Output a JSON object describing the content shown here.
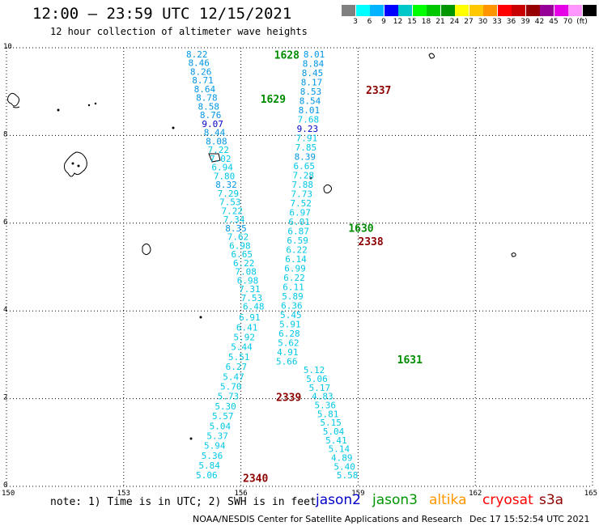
{
  "header": {
    "title": "12:00 — 23:59 UTC 12/15/2021",
    "subtitle": "12 hour collection of altimeter wave heights"
  },
  "legend": {
    "colors": [
      "#808080",
      "#00ffff",
      "#00b4ff",
      "#0000ff",
      "#00c8c8",
      "#00ff00",
      "#00c800",
      "#009600",
      "#ffff00",
      "#ffc800",
      "#ff9600",
      "#ff0000",
      "#c80000",
      "#960000",
      "#960096",
      "#e600e6",
      "#ff96ff",
      "#000000"
    ],
    "labels": [
      "3",
      "6",
      "9",
      "12",
      "15",
      "18",
      "21",
      "24",
      "27",
      "30",
      "33",
      "36",
      "39",
      "42",
      "45",
      "70",
      "(ft)"
    ]
  },
  "axes": {
    "x_ticks": [
      "150",
      "153",
      "156",
      "159",
      "162",
      "165"
    ],
    "y_ticks": [
      "10",
      "8",
      "6",
      "4",
      "2",
      "0"
    ]
  },
  "palette": {
    "cyan": "#00c8e6",
    "blue_mid": "#0096e6",
    "blue_dark": "#0000c8",
    "green": "#008c00",
    "darkred": "#8c0000",
    "coast": "#000000",
    "grid": "#000000"
  },
  "passes": [
    {
      "label": "1628",
      "color": "#008c00",
      "lon": 156.85,
      "lat": 9.75
    },
    {
      "label": "1629",
      "color": "#008c00",
      "lon": 156.5,
      "lat": 8.75
    },
    {
      "label": "2337",
      "color": "#8c0000",
      "lon": 159.2,
      "lat": 8.95
    },
    {
      "label": "1630",
      "color": "#008c00",
      "lon": 158.75,
      "lat": 5.8
    },
    {
      "label": "2338",
      "color": "#8c0000",
      "lon": 159.0,
      "lat": 5.5
    },
    {
      "label": "1631",
      "color": "#008c00",
      "lon": 160.0,
      "lat": 2.8
    },
    {
      "label": "2339",
      "color": "#8c0000",
      "lon": 156.9,
      "lat": 1.95
    },
    {
      "label": "2340",
      "color": "#8c0000",
      "lon": 156.05,
      "lat": 0.1
    }
  ],
  "tracks": [
    {
      "name": "pass-1628-1630",
      "values": [
        "8.22",
        "8.46",
        "8.26",
        "8.71",
        "8.64",
        "8.78",
        "8.58",
        "8.76",
        "9.07",
        "8.44",
        "8.08",
        "7.22",
        "7.02",
        "6.94",
        "7.80",
        "8.32",
        "7.29",
        "7.53",
        "7.22",
        "7.34",
        "8.35",
        "7.62",
        "6.98",
        "6.65",
        "6.22",
        "7.08",
        "6.98",
        "7.31",
        "7.53",
        "6.48"
      ],
      "start": [
        154.6,
        9.78
      ],
      "end": [
        156.05,
        4.03
      ]
    },
    {
      "name": "pass-2337-2338",
      "values": [
        "8.01",
        "8.84",
        "8.45",
        "8.17",
        "8.53",
        "8.54",
        "8.01",
        "7.68",
        "9.23",
        "7.91",
        "7.85",
        "8.39",
        "6.65",
        "7.28",
        "7.88",
        "7.73",
        "7.52",
        "6.97",
        "6.01",
        "6.87",
        "6.59",
        "6.22",
        "6.14",
        "6.99",
        "6.22",
        "6.11",
        "5.89",
        "6.36",
        "5.45",
        "5.91",
        "6.28",
        "5.62",
        "4.91",
        "5.66"
      ],
      "start": [
        157.6,
        9.78
      ],
      "end": [
        156.9,
        2.78
      ]
    },
    {
      "name": "pass-1631-lower",
      "values": [
        "5.12",
        "5.06",
        "5.17",
        "4.83",
        "5.36",
        "5.81",
        "5.15",
        "5.04",
        "5.41",
        "5.14",
        "4.89",
        "5.40",
        "5.58"
      ],
      "start": [
        157.6,
        2.58
      ],
      "end": [
        158.45,
        0.18
      ]
    },
    {
      "name": "pass-2339-lower",
      "values": [
        "6.91",
        "6.41",
        "5.92",
        "5.44",
        "5.51",
        "6.27",
        "5.47",
        "5.70",
        "5.73",
        "5.30",
        "5.57",
        "5.04",
        "5.37",
        "5.94",
        "5.36",
        "5.84",
        "5.06"
      ],
      "start": [
        155.95,
        3.78
      ],
      "end": [
        154.85,
        0.18
      ]
    }
  ],
  "footer": {
    "note": "note: 1) Time is in UTC; 2) SWH is in feet",
    "satellites": [
      {
        "name": "jason2",
        "color": "#0000c8"
      },
      {
        "name": "jason3",
        "color": "#009600"
      },
      {
        "name": "altika",
        "color": "#ff9600"
      },
      {
        "name": "cryosat",
        "color": "#ff0000"
      },
      {
        "name": "s3a",
        "color": "#8c0000"
      }
    ],
    "credit": "NOAA/NESDIS Center for Satellite Applications and Research",
    "timestamp": "Dec 17 15:52:54 UTC 2021"
  }
}
